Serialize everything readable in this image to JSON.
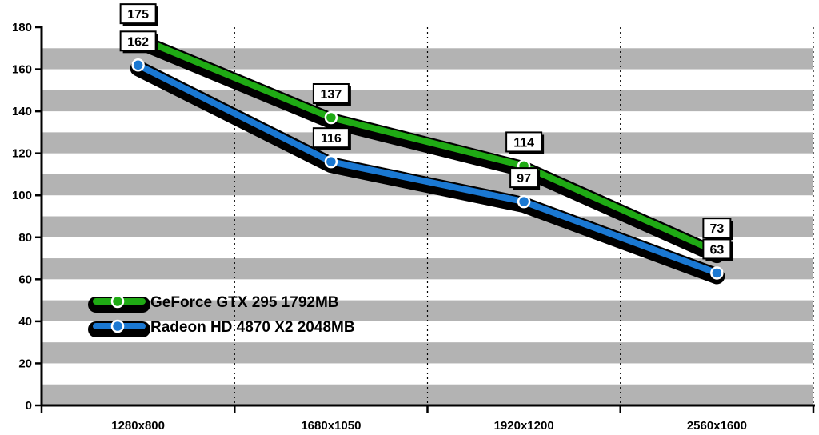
{
  "chart_data": {
    "type": "line",
    "title": "",
    "xlabel": "",
    "ylabel": "",
    "categories": [
      "1280x800",
      "1680x1050",
      "1920x1200",
      "2560x1600"
    ],
    "ylim": [
      0,
      180
    ],
    "yticks": [
      0,
      20,
      40,
      60,
      80,
      100,
      120,
      140,
      160,
      180
    ],
    "grid": "alternating horizontal bands, dotted vertical lines",
    "legend_position": "lower-left",
    "series": [
      {
        "name": "GeForce GTX 295 1792MB",
        "values": [
          175,
          137,
          114,
          73
        ],
        "color": "#1faa14"
      },
      {
        "name": "Radeon HD 4870 X2 2048MB",
        "values": [
          162,
          116,
          97,
          63
        ],
        "color": "#1a78d2"
      }
    ]
  }
}
